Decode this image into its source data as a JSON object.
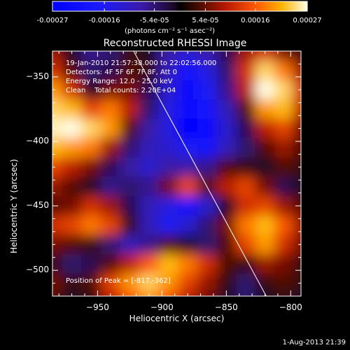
{
  "colorbar": {
    "tick_labels": [
      "-0.00027",
      "-0.00016",
      "-5.4e-05",
      "5.4e-05",
      "0.00016",
      "0.00027"
    ],
    "tick_values": [
      -0.00027,
      -0.00016,
      -5.4e-05,
      5.4e-05,
      0.00016,
      0.00027
    ],
    "range": [
      -0.00027,
      0.00027
    ],
    "units_label": "(photons cm⁻² s⁻¹ asec⁻²)"
  },
  "chart_data": {
    "type": "heatmap",
    "title": "Reconstructed RHESSI Image",
    "xlabel": "Heliocentric X (arcsec)",
    "ylabel": "Heliocentric Y (arcsec)",
    "xlim": [
      -985,
      -792
    ],
    "ylim": [
      -520,
      -330
    ],
    "x_ticks": [
      -950,
      -900,
      -850,
      -800
    ],
    "y_ticks": [
      -350,
      -400,
      -450,
      -500
    ],
    "x_tick_labels": [
      "−950",
      "−900",
      "−850",
      "−800"
    ],
    "y_tick_labels": [
      "−350",
      "−400",
      "−450",
      "−500"
    ],
    "limb_line": [
      [
        -922,
        -330
      ],
      [
        -819,
        -520
      ]
    ],
    "intensity_grid": {
      "x": [
        -985,
        -970,
        -955,
        -940,
        -925,
        -910,
        -895,
        -880,
        -865,
        -850,
        -835,
        -820,
        -805,
        -792
      ],
      "y": [
        -330,
        -345,
        -360,
        -375,
        -390,
        -405,
        -420,
        -435,
        -450,
        -465,
        -480,
        -495,
        -510,
        -520
      ],
      "z": [
        [
          8e-05,
          0.0,
          -6e-05,
          -4e-05,
          2e-05,
          0.0,
          -8e-05,
          -0.00012,
          -8e-05,
          -2e-05,
          8e-05,
          0.00012,
          6e-05,
          2e-05
        ],
        [
          0.00012,
          4e-05,
          -4e-05,
          -2e-05,
          4e-05,
          2e-05,
          -0.0001,
          -0.00018,
          -0.00014,
          -4e-05,
          0.00012,
          0.00024,
          0.00018,
          8e-05
        ],
        [
          0.0002,
          0.00012,
          0.0,
          6e-05,
          6e-05,
          -2e-05,
          -0.00012,
          -0.00022,
          -0.00016,
          -6e-05,
          0.0001,
          0.00027,
          0.00024,
          0.00012
        ],
        [
          0.00024,
          0.00022,
          0.00014,
          0.00018,
          0.0001,
          -4e-05,
          -0.00014,
          -0.00024,
          -0.0002,
          -0.0001,
          4e-05,
          0.0002,
          0.00022,
          0.0001
        ],
        [
          0.00026,
          0.00027,
          0.00024,
          0.0002,
          4e-05,
          -8e-05,
          -0.00014,
          -0.00027,
          -0.00024,
          -0.00012,
          -2e-05,
          0.0001,
          0.00014,
          6e-05
        ],
        [
          0.00022,
          0.0002,
          0.00018,
          8e-05,
          -4e-05,
          -0.0001,
          -0.00012,
          -0.00016,
          -0.0002,
          -0.0001,
          -4e-05,
          4e-05,
          8e-05,
          4e-05
        ],
        [
          0.00014,
          0.0001,
          6e-05,
          -2e-05,
          -8e-05,
          -0.00012,
          -8e-05,
          -8e-05,
          -6e-05,
          4e-05,
          2e-05,
          0.0,
          4e-05,
          2e-05
        ],
        [
          8e-05,
          4e-05,
          0.0,
          -6e-05,
          -4e-05,
          -6e-05,
          6e-05,
          0.00014,
          4e-05,
          0.0001,
          0.00014,
          6e-05,
          -2e-05,
          0.0
        ],
        [
          4e-05,
          6e-05,
          0.00012,
          8e-05,
          -2e-05,
          -0.0001,
          -0.00014,
          -0.00018,
          -0.00012,
          0.0,
          0.00012,
          0.00014,
          8e-05,
          4e-05
        ],
        [
          0.00012,
          0.00014,
          0.00018,
          0.00014,
          2e-05,
          -0.0001,
          -0.00016,
          -0.00012,
          -4e-05,
          6e-05,
          0.00018,
          0.00022,
          0.00016,
          8e-05
        ],
        [
          6e-05,
          4e-05,
          2e-05,
          -4e-05,
          -0.0001,
          -6e-05,
          4e-05,
          0.0,
          -4e-05,
          4e-05,
          0.00014,
          0.0002,
          0.00012,
          6e-05
        ],
        [
          2e-05,
          -4e-05,
          -2e-05,
          4e-05,
          0.0001,
          0.00016,
          0.00022,
          0.00018,
          0.00012,
          4e-05,
          2e-05,
          8e-05,
          6e-05,
          2e-05
        ],
        [
          6e-05,
          2e-05,
          4e-05,
          0.00014,
          0.0002,
          0.00024,
          0.0002,
          0.00014,
          8e-05,
          2e-05,
          -4e-05,
          2e-05,
          4e-05,
          2e-05
        ],
        [
          4e-05,
          0.0,
          2e-05,
          0.0001,
          0.00016,
          0.0002,
          0.00016,
          0.0001,
          6e-05,
          0.0,
          -4e-05,
          0.0,
          2e-05,
          0.0
        ]
      ]
    }
  },
  "annotations": {
    "time_range": "19-Jan-2010 21:57:38.000 to 22:02:56.000",
    "detectors": "Detectors: 4F 5F 6F 7F 8F, Att 0",
    "energy": "Energy Range: 12.0 - 25.0 keV",
    "clean": "Clean    Total counts: 2.20E+04",
    "peak": "Position of Peak = [-817,-362]"
  },
  "footer": {
    "date": "1-Aug-2013 21:39"
  }
}
